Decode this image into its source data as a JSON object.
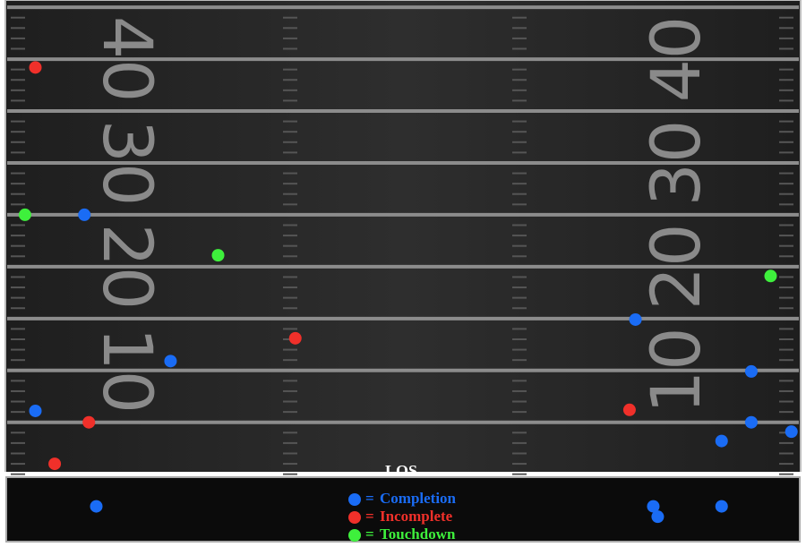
{
  "chart_data": {
    "type": "scatter",
    "annotation": "LOS",
    "legend_prefix": "=",
    "xlim": [
      0,
      53.3
    ],
    "ylim": [
      -6.5,
      45.7
    ],
    "yticks": [
      10,
      20,
      30,
      40
    ],
    "yminor_ticks": [
      0,
      5,
      15,
      25,
      35,
      45
    ],
    "grid": true,
    "series": [
      {
        "name": "Completion",
        "color": "#1a6cf5",
        "x": [
          5.2,
          42.3,
          11.0,
          50.1,
          1.9,
          50.1,
          48.1,
          52.8,
          6.0,
          43.5,
          43.8,
          48.1
        ],
        "values": [
          25.0,
          14.9,
          10.9,
          9.9,
          6.1,
          5.0,
          3.2,
          4.1,
          -3.1,
          -3.1,
          -4.1,
          -3.1
        ]
      },
      {
        "name": "Incomplete",
        "color": "#f0302a",
        "x": [
          1.9,
          19.4,
          5.5,
          3.2,
          41.9
        ],
        "values": [
          39.2,
          13.1,
          5.0,
          1.0,
          6.2
        ]
      },
      {
        "name": "Touchdown",
        "color": "#3ef03c",
        "x": [
          1.2,
          14.2,
          51.4
        ],
        "values": [
          25.0,
          21.1,
          19.1
        ]
      }
    ]
  }
}
